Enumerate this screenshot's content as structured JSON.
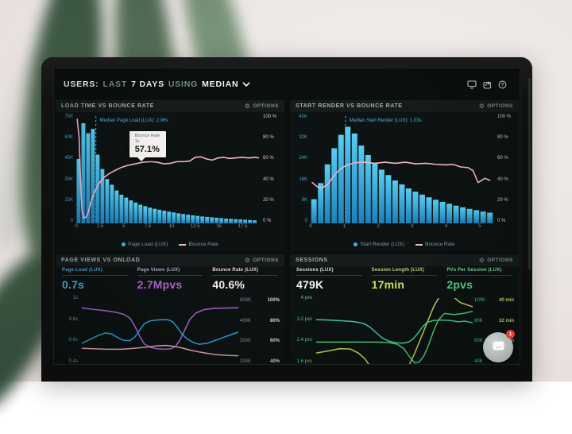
{
  "topbar": {
    "users": "USERS:",
    "last": "LAST",
    "days": "7 DAYS",
    "using": "USING",
    "median": "MEDIAN"
  },
  "panels": {
    "load_time": {
      "title": "LOAD TIME VS BOUNCE RATE",
      "options": "OPTIONS",
      "tooltip": {
        "title": "Bounce Rate",
        "sub": "1s",
        "value": "57.1%"
      },
      "legend": [
        {
          "label": "Page Load (LUX)",
          "marker": "dot",
          "color": "#38b6e8"
        },
        {
          "label": "Bounce Rate",
          "marker": "dash",
          "color": "#f3b7c9"
        }
      ]
    },
    "start_render": {
      "title": "START RENDER VS BOUNCE RATE",
      "options": "OPTIONS",
      "legend": [
        {
          "label": "Start Render (LUX)",
          "marker": "dot",
          "color": "#38b6e8"
        },
        {
          "label": "Bounce Rate",
          "marker": "dash",
          "color": "#f3b7c9"
        }
      ]
    },
    "page_views": {
      "title": "PAGE VIEWS VS ONLOAD",
      "options": "OPTIONS",
      "metrics": [
        {
          "label": "Page Load (LUX)",
          "value": "0.7s",
          "label_color": "#4aa6d2",
          "value_color": "#41b2e6"
        },
        {
          "label": "Page Views (LUX)",
          "value": "2.7Mpvs",
          "label_color": "#b3a6c4",
          "value_color": "#b55fd4"
        },
        {
          "label": "Bounce Rate (LUX)",
          "value": "40.6%",
          "label_color": "#e9d5dc",
          "value_color": "#f6e9ee"
        }
      ]
    },
    "sessions": {
      "title": "SESSIONS",
      "options": "OPTIONS",
      "metrics": [
        {
          "label": "Sessions (LUX)",
          "value": "479K",
          "label_color": "#cfe2d6",
          "value_color": "#f0f6f2"
        },
        {
          "label": "Session Length (LUX)",
          "value": "17min",
          "label_color": "#c4d57e",
          "value_color": "#cfe35f"
        },
        {
          "label": "PVs Per Session (LUX)",
          "value": "2pvs",
          "label_color": "#7fd8a0",
          "value_color": "#54d584"
        }
      ]
    }
  },
  "widget": {
    "badge": "1"
  },
  "chart_data": [
    {
      "id": "load-time",
      "type": "bar",
      "title": "LOAD TIME VS BOUNCE RATE",
      "bar_series": "Page Load (LUX)",
      "line_series": "Bounce Rate",
      "xlim": [
        0,
        19.2
      ],
      "bar_width": 0.5,
      "x_unit": "s",
      "ylim_left_k": [
        0,
        75
      ],
      "ylim_right_pct": [
        0,
        100
      ],
      "y_left_labels": [
        "75K",
        "60K",
        "45K",
        "30K",
        "15K",
        "0"
      ],
      "y_right_labels": [
        "100 %",
        "80 %",
        "60 %",
        "40 %",
        "20 %",
        "0 %"
      ],
      "x_ticks": [
        {
          "v": 0,
          "label": "0"
        },
        {
          "v": 2.5,
          "label": "2.5"
        },
        {
          "v": 5,
          "label": "5"
        },
        {
          "v": 7.5,
          "label": "7.5"
        },
        {
          "v": 10,
          "label": "10"
        },
        {
          "v": 12.5,
          "label": "12.5"
        },
        {
          "v": 15,
          "label": "15"
        },
        {
          "v": 17.5,
          "label": "17.5"
        }
      ],
      "bars_k": [
        45,
        70,
        63,
        66,
        48,
        38,
        31,
        27,
        23,
        20,
        18,
        16,
        14.5,
        13,
        12,
        11,
        10.2,
        9.5,
        8.8,
        8.2,
        7.6,
        7.0,
        6.5,
        6.0,
        5.6,
        5.2,
        4.8,
        4.5,
        4.2,
        3.9,
        3.6,
        3.3,
        3.1,
        2.9,
        2.7,
        2.5,
        2.3,
        2.1
      ],
      "line_pct": [
        [
          0.1,
          97
        ],
        [
          0.3,
          80
        ],
        [
          0.45,
          40
        ],
        [
          0.6,
          12
        ],
        [
          0.8,
          5
        ],
        [
          1.0,
          5.5
        ],
        [
          1.25,
          10
        ],
        [
          1.55,
          20
        ],
        [
          1.9,
          29
        ],
        [
          2.3,
          36
        ],
        [
          2.8,
          42
        ],
        [
          3.4,
          46
        ],
        [
          4.0,
          49
        ],
        [
          4.7,
          52
        ],
        [
          5.4,
          54
        ],
        [
          6.2,
          55.5
        ],
        [
          7.0,
          57
        ],
        [
          7.8,
          57.5
        ],
        [
          8.5,
          57
        ],
        [
          9.2,
          55.5
        ],
        [
          9.9,
          56
        ],
        [
          10.6,
          57.5
        ],
        [
          11.3,
          57.5
        ],
        [
          11.9,
          58
        ],
        [
          12.5,
          61.5
        ],
        [
          13.1,
          62
        ],
        [
          13.7,
          60
        ],
        [
          14.3,
          59
        ],
        [
          14.9,
          61
        ],
        [
          15.5,
          61.5
        ],
        [
          16.1,
          60.5
        ],
        [
          16.7,
          61
        ],
        [
          17.4,
          61.5
        ],
        [
          18.1,
          61
        ],
        [
          18.8,
          61.5
        ],
        [
          19.2,
          61
        ]
      ],
      "median": {
        "x": 2.06,
        "label": "Median Page Load (LUX): 2.06s"
      },
      "bar_color_top": "#58cdf2",
      "bar_color_bottom": "#1d80ba",
      "line_color": "#f2b3c6",
      "median_color": "#58b7dd"
    },
    {
      "id": "start-render",
      "type": "bar",
      "title": "START RENDER VS BOUNCE RATE",
      "bar_series": "Start Render (LUX)",
      "line_series": "Bounce Rate",
      "xlim": [
        0,
        5.4
      ],
      "bar_width": 0.2,
      "x_unit": "s",
      "ylim_left_k": [
        0,
        40
      ],
      "ylim_right_pct": [
        0,
        100
      ],
      "y_left_labels": [
        "40K",
        "32K",
        "24K",
        "16K",
        "8K",
        "0"
      ],
      "y_right_labels": [
        "100 %",
        "80 %",
        "60 %",
        "40 %",
        "20 %",
        "0 %"
      ],
      "x_ticks": [
        {
          "v": 0,
          "label": "0"
        },
        {
          "v": 1,
          "label": "1"
        },
        {
          "v": 2,
          "label": "2"
        },
        {
          "v": 3,
          "label": "3"
        },
        {
          "v": 4,
          "label": "4"
        },
        {
          "v": 5,
          "label": "5"
        }
      ],
      "bars_k": [
        9,
        15,
        22,
        28,
        33,
        36,
        33.5,
        29,
        25.5,
        22.5,
        20,
        18,
        16,
        14.5,
        13,
        11.8,
        10.7,
        9.7,
        8.8,
        8.0,
        7.3,
        6.6,
        6.0,
        5.4,
        4.9,
        4.4,
        4.0
      ],
      "line_pct": [
        [
          0.05,
          38
        ],
        [
          0.2,
          34
        ],
        [
          0.33,
          33
        ],
        [
          0.5,
          36
        ],
        [
          0.68,
          44
        ],
        [
          0.85,
          50
        ],
        [
          1.05,
          54
        ],
        [
          1.3,
          56.5
        ],
        [
          1.6,
          57
        ],
        [
          1.9,
          56
        ],
        [
          2.2,
          57
        ],
        [
          2.5,
          56
        ],
        [
          2.8,
          57
        ],
        [
          3.1,
          55.5
        ],
        [
          3.4,
          56
        ],
        [
          3.7,
          55
        ],
        [
          4.0,
          54.5
        ],
        [
          4.2,
          55
        ],
        [
          4.45,
          52.5
        ],
        [
          4.65,
          52
        ],
        [
          4.8,
          49
        ],
        [
          4.95,
          38
        ],
        [
          5.15,
          42
        ],
        [
          5.3,
          40
        ]
      ],
      "median": {
        "x": 1.03,
        "label": "Median Start Render (LUX): 1.03s"
      },
      "bar_color_top": "#58cdf2",
      "bar_color_bottom": "#1d80ba",
      "line_color": "#f2b3c6",
      "median_color": "#58b7dd"
    },
    {
      "id": "onload",
      "type": "line",
      "title": "PAGE VIEWS VS ONLOAD",
      "xlim": [
        0,
        100
      ],
      "y_left_labels": [
        "1s",
        "0.8s",
        "0.6s",
        "0.4s"
      ],
      "y_left_color": "#4aa2cc",
      "y_right_pairs": [
        [
          "500K",
          "100%"
        ],
        [
          "400K",
          "80%"
        ],
        [
          "300K",
          "60%"
        ],
        [
          "200K",
          "40%"
        ]
      ],
      "y_right_colors": [
        "#8c9096",
        "#e3c6d2"
      ],
      "series": [
        {
          "name": "Page Views (LUX)",
          "color": "#aa66d4",
          "yrange": [
            150,
            520
          ],
          "points": [
            [
              0,
              465
            ],
            [
              8,
              456
            ],
            [
              16,
              448
            ],
            [
              22,
              440
            ],
            [
              27,
              428
            ],
            [
              31,
              405
            ],
            [
              34,
              360
            ],
            [
              37,
              305
            ],
            [
              40,
              262
            ],
            [
              44,
              243
            ],
            [
              48,
              236
            ],
            [
              53,
              233
            ],
            [
              57,
              236
            ],
            [
              60,
              250
            ],
            [
              63,
              290
            ],
            [
              66,
              345
            ],
            [
              69,
              400
            ],
            [
              73,
              437
            ],
            [
              78,
              455
            ],
            [
              84,
              462
            ],
            [
              92,
              464
            ],
            [
              100,
              466
            ]
          ]
        },
        {
          "name": "Page Load (LUX)",
          "color": "#2f9fe0",
          "yrange": [
            0.35,
            1.05
          ],
          "points": [
            [
              0,
              0.57
            ],
            [
              5,
              0.61
            ],
            [
              10,
              0.65
            ],
            [
              15,
              0.68
            ],
            [
              19,
              0.67
            ],
            [
              23,
              0.63
            ],
            [
              27,
              0.6
            ],
            [
              31,
              0.6
            ],
            [
              34,
              0.64
            ],
            [
              37,
              0.71
            ],
            [
              40,
              0.78
            ],
            [
              44,
              0.81
            ],
            [
              50,
              0.82
            ],
            [
              55,
              0.82
            ],
            [
              58,
              0.8
            ],
            [
              61,
              0.74
            ],
            [
              64,
              0.67
            ],
            [
              67,
              0.62
            ],
            [
              71,
              0.58
            ],
            [
              75,
              0.56
            ],
            [
              80,
              0.57
            ],
            [
              85,
              0.6
            ],
            [
              90,
              0.63
            ],
            [
              95,
              0.66
            ],
            [
              100,
              0.69
            ]
          ]
        },
        {
          "name": "Bounce Rate (LUX)",
          "color": "#e3a8ba",
          "yrange": [
            25,
            105
          ],
          "points": [
            [
              0,
              44
            ],
            [
              8,
              43.5
            ],
            [
              16,
              43
            ],
            [
              25,
              43
            ],
            [
              33,
              44
            ],
            [
              41,
              45.5
            ],
            [
              48,
              47
            ],
            [
              54,
              47.5
            ],
            [
              59,
              46.5
            ],
            [
              64,
              44.5
            ],
            [
              69,
              42
            ],
            [
              74,
              40
            ],
            [
              80,
              38
            ],
            [
              86,
              36.5
            ],
            [
              93,
              35.5
            ],
            [
              100,
              35
            ]
          ]
        }
      ]
    },
    {
      "id": "sessions",
      "type": "line",
      "title": "SESSIONS",
      "xlim": [
        0,
        100
      ],
      "y_left_labels": [
        "4 pvs",
        "3.2 pvs",
        "2.4 pvs",
        "1.6 pvs"
      ],
      "y_left_color": "#5bd089",
      "y_right_pairs": [
        [
          "100K",
          "40 min"
        ],
        [
          "80K",
          "32 min"
        ],
        [
          "60K",
          "24 min"
        ],
        [
          "40K",
          ""
        ]
      ],
      "y_right_colors": [
        "#41cfa9",
        "#c2d968"
      ],
      "series": [
        {
          "name": "PVs Per Session (LUX)",
          "color": "#3ecfa6",
          "yrange": [
            1.2,
            4.2
          ],
          "points": [
            [
              0,
              3.22
            ],
            [
              8,
              3.2
            ],
            [
              16,
              3.17
            ],
            [
              24,
              3.13
            ],
            [
              30,
              3.05
            ],
            [
              34,
              2.9
            ],
            [
              38,
              2.65
            ],
            [
              42,
              2.4
            ],
            [
              46,
              2.25
            ],
            [
              50,
              2.18
            ],
            [
              55,
              2.15
            ],
            [
              59,
              2.2
            ],
            [
              62,
              2.35
            ],
            [
              65,
              2.6
            ],
            [
              68,
              2.9
            ],
            [
              71,
              3.1
            ],
            [
              75,
              3.18
            ],
            [
              80,
              3.2
            ],
            [
              86,
              3.18
            ],
            [
              91,
              3.12
            ],
            [
              95,
              3.15
            ],
            [
              100,
              3.08
            ]
          ]
        },
        {
          "name": "Sessions (LUX)",
          "color": "#52c878",
          "yrange": [
            1.2,
            4.2
          ],
          "points": [
            [
              0,
              2.2
            ],
            [
              12,
              2.2
            ],
            [
              25,
              2.2
            ],
            [
              38,
              2.2
            ],
            [
              46,
              2.18
            ],
            [
              52,
              2.1
            ],
            [
              56,
              1.9
            ],
            [
              60,
              1.5
            ],
            [
              63,
              1.25
            ],
            [
              66,
              1.3
            ],
            [
              69,
              1.6
            ],
            [
              72,
              2.1
            ],
            [
              75,
              2.7
            ],
            [
              78,
              3.2
            ],
            [
              82,
              3.5
            ],
            [
              88,
              3.45
            ],
            [
              94,
              3.5
            ],
            [
              100,
              3.6
            ]
          ]
        },
        {
          "name": "Session Length (LUX)",
          "color": "#bdd85e",
          "yrange": [
            1.2,
            4.2
          ],
          "points": [
            [
              0,
              1.7
            ],
            [
              8,
              1.8
            ],
            [
              15,
              1.9
            ],
            [
              22,
              1.88
            ],
            [
              27,
              1.7
            ],
            [
              31,
              1.45
            ],
            [
              34,
              1.15
            ],
            [
              37,
              0.85
            ],
            [
              40,
              0.6
            ],
            [
              45,
              0.42
            ],
            [
              50,
              0.45
            ],
            [
              55,
              0.7
            ],
            [
              59,
              1.1
            ],
            [
              63,
              1.7
            ],
            [
              67,
              2.4
            ],
            [
              71,
              3.1
            ],
            [
              75,
              3.8
            ],
            [
              79,
              4.3
            ],
            [
              83,
              4.5
            ],
            [
              87,
              4.3
            ],
            [
              92,
              4.0
            ],
            [
              100,
              3.8
            ]
          ]
        }
      ]
    }
  ]
}
